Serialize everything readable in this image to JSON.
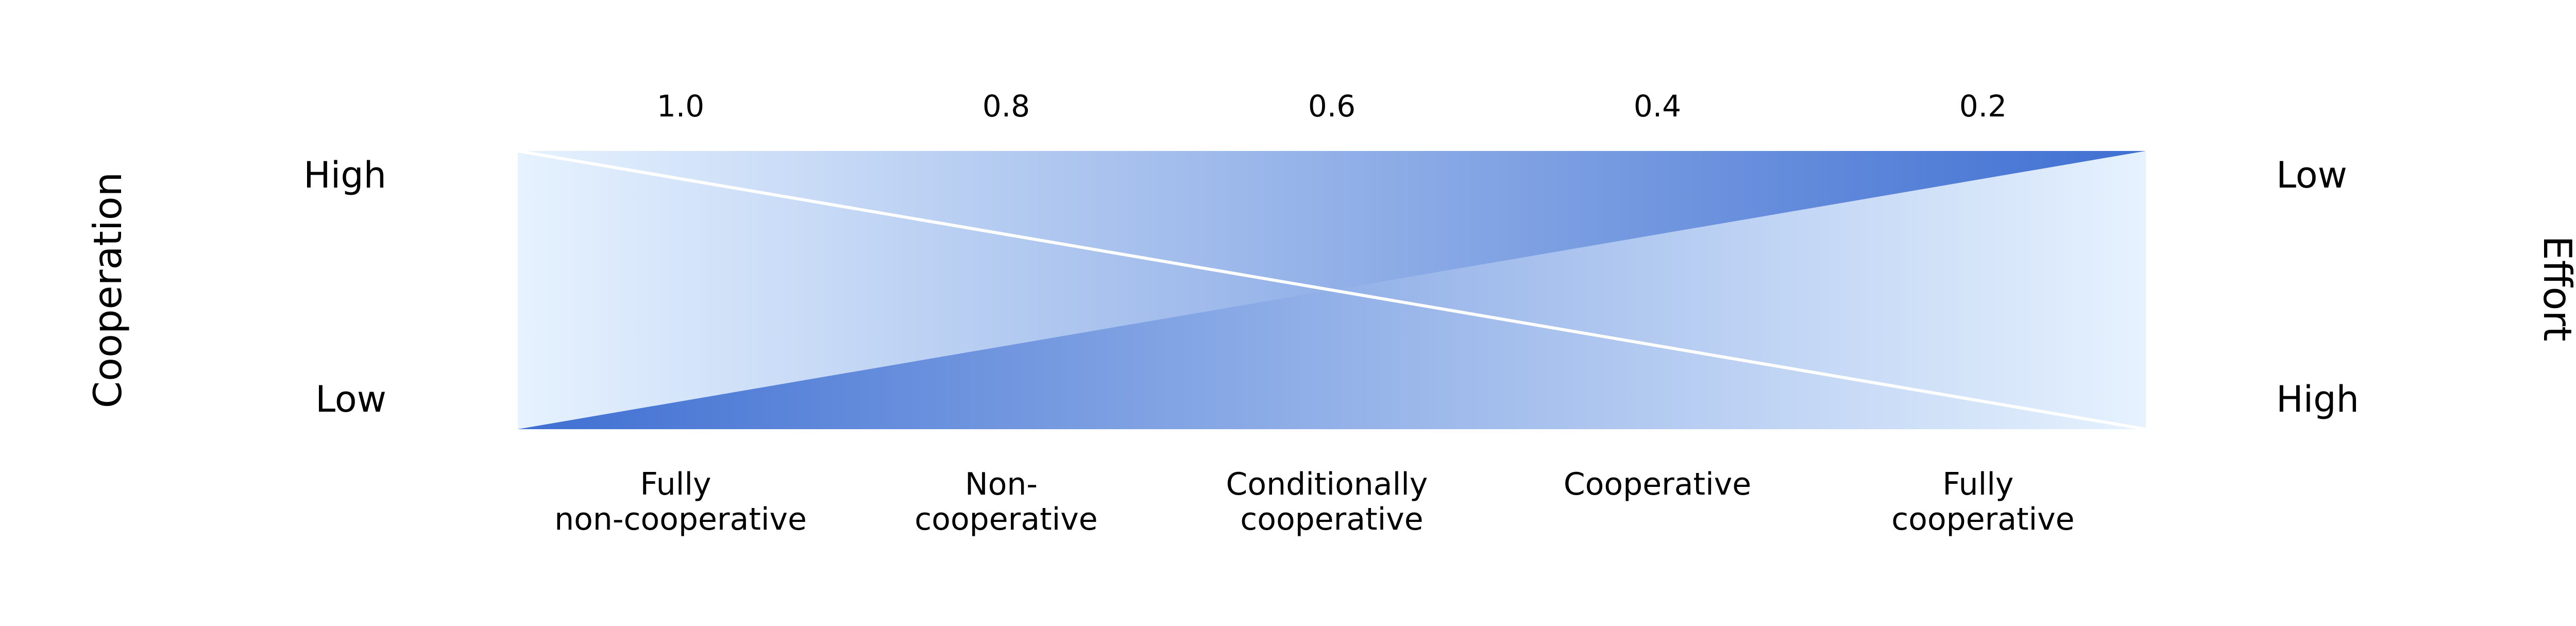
{
  "chart_data": {
    "type": "diagram",
    "top_ticks": [
      "1.0",
      "0.8",
      "0.6",
      "0.4",
      "0.2"
    ],
    "left_axis": {
      "title": "Cooperation",
      "high": "High",
      "low": "Low"
    },
    "right_axis": {
      "title": "Effort",
      "high": "High",
      "low": "Low"
    },
    "categories": [
      {
        "line1": "Fully",
        "line2": "non-cooperative"
      },
      {
        "line1": "Non-",
        "line2": "cooperative"
      },
      {
        "line1": "Conditionally",
        "line2": "cooperative"
      },
      {
        "line1": "Cooperative",
        "line2": ""
      },
      {
        "line1": "Fully",
        "line2": "cooperative"
      }
    ],
    "colors": {
      "light": "#e6f2fe",
      "dark": "#3f6fd2",
      "divider": "#ffffff"
    }
  }
}
